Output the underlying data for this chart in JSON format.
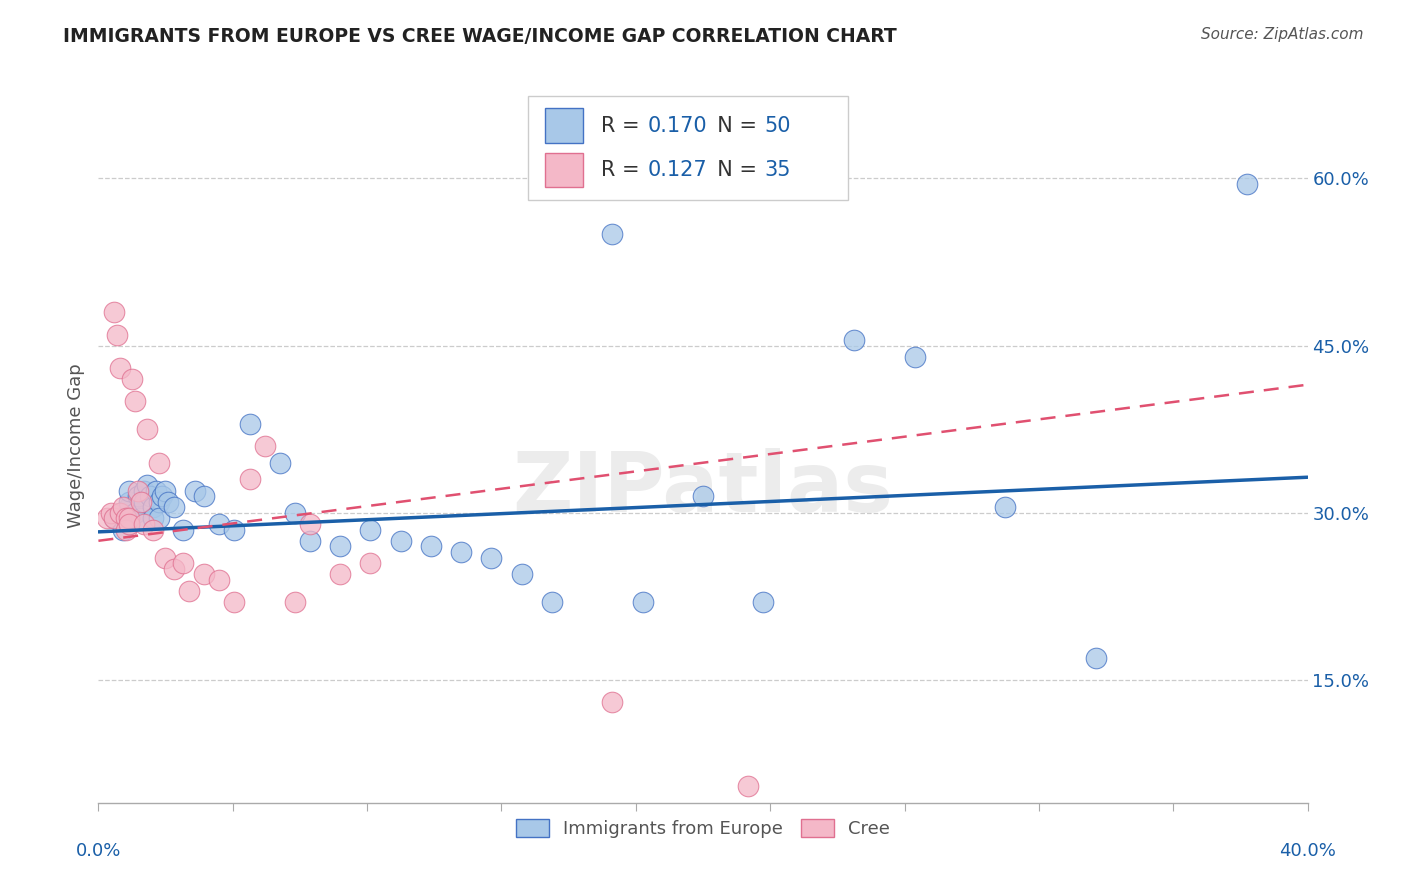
{
  "title": "IMMIGRANTS FROM EUROPE VS CREE WAGE/INCOME GAP CORRELATION CHART",
  "source": "Source: ZipAtlas.com",
  "ylabel": "Wage/Income Gap",
  "yticks": [
    0.15,
    0.3,
    0.45,
    0.6
  ],
  "ytick_labels": [
    "15.0%",
    "30.0%",
    "45.0%",
    "60.0%"
  ],
  "xlim": [
    0.0,
    0.4
  ],
  "ylim": [
    0.04,
    0.68
  ],
  "blue_R": "0.170",
  "blue_N": "50",
  "pink_R": "0.127",
  "pink_N": "35",
  "blue_fill": "#a8c8e8",
  "pink_fill": "#f4b8c8",
  "blue_edge": "#4472c4",
  "pink_edge": "#e07090",
  "blue_line_color": "#1a5fa8",
  "pink_line_color": "#e05070",
  "rn_text_color": "#1a5fa8",
  "label_color": "#1a5fa8",
  "legend_label_blue": "Immigrants from Europe",
  "legend_label_pink": "Cree",
  "watermark": "ZIPatlas",
  "blue_scatter_x": [
    0.005,
    0.007,
    0.008,
    0.009,
    0.01,
    0.01,
    0.01,
    0.01,
    0.012,
    0.013,
    0.014,
    0.015,
    0.015,
    0.016,
    0.017,
    0.018,
    0.018,
    0.019,
    0.02,
    0.02,
    0.021,
    0.022,
    0.023,
    0.025,
    0.028,
    0.032,
    0.035,
    0.04,
    0.045,
    0.05,
    0.06,
    0.065,
    0.07,
    0.08,
    0.09,
    0.1,
    0.11,
    0.12,
    0.13,
    0.14,
    0.15,
    0.17,
    0.18,
    0.2,
    0.22,
    0.25,
    0.27,
    0.3,
    0.33,
    0.38
  ],
  "blue_scatter_y": [
    0.295,
    0.3,
    0.285,
    0.295,
    0.305,
    0.29,
    0.31,
    0.32,
    0.3,
    0.315,
    0.295,
    0.32,
    0.31,
    0.325,
    0.315,
    0.305,
    0.295,
    0.32,
    0.31,
    0.295,
    0.315,
    0.32,
    0.31,
    0.305,
    0.285,
    0.32,
    0.315,
    0.29,
    0.285,
    0.38,
    0.345,
    0.3,
    0.275,
    0.27,
    0.285,
    0.275,
    0.27,
    0.265,
    0.26,
    0.245,
    0.22,
    0.55,
    0.22,
    0.315,
    0.22,
    0.455,
    0.44,
    0.305,
    0.17,
    0.595
  ],
  "pink_scatter_x": [
    0.003,
    0.004,
    0.005,
    0.005,
    0.006,
    0.007,
    0.007,
    0.008,
    0.009,
    0.009,
    0.01,
    0.01,
    0.011,
    0.012,
    0.013,
    0.014,
    0.015,
    0.016,
    0.018,
    0.02,
    0.022,
    0.025,
    0.028,
    0.03,
    0.035,
    0.04,
    0.045,
    0.05,
    0.055,
    0.065,
    0.07,
    0.08,
    0.09,
    0.17,
    0.215
  ],
  "pink_scatter_y": [
    0.295,
    0.3,
    0.48,
    0.295,
    0.46,
    0.43,
    0.3,
    0.305,
    0.295,
    0.285,
    0.295,
    0.29,
    0.42,
    0.4,
    0.32,
    0.31,
    0.29,
    0.375,
    0.285,
    0.345,
    0.26,
    0.25,
    0.255,
    0.23,
    0.245,
    0.24,
    0.22,
    0.33,
    0.36,
    0.22,
    0.29,
    0.245,
    0.255,
    0.13,
    0.055
  ],
  "blue_line_x": [
    0.0,
    0.4
  ],
  "blue_line_y": [
    0.283,
    0.332
  ],
  "pink_line_x": [
    0.0,
    0.4
  ],
  "pink_line_y": [
    0.275,
    0.415
  ]
}
